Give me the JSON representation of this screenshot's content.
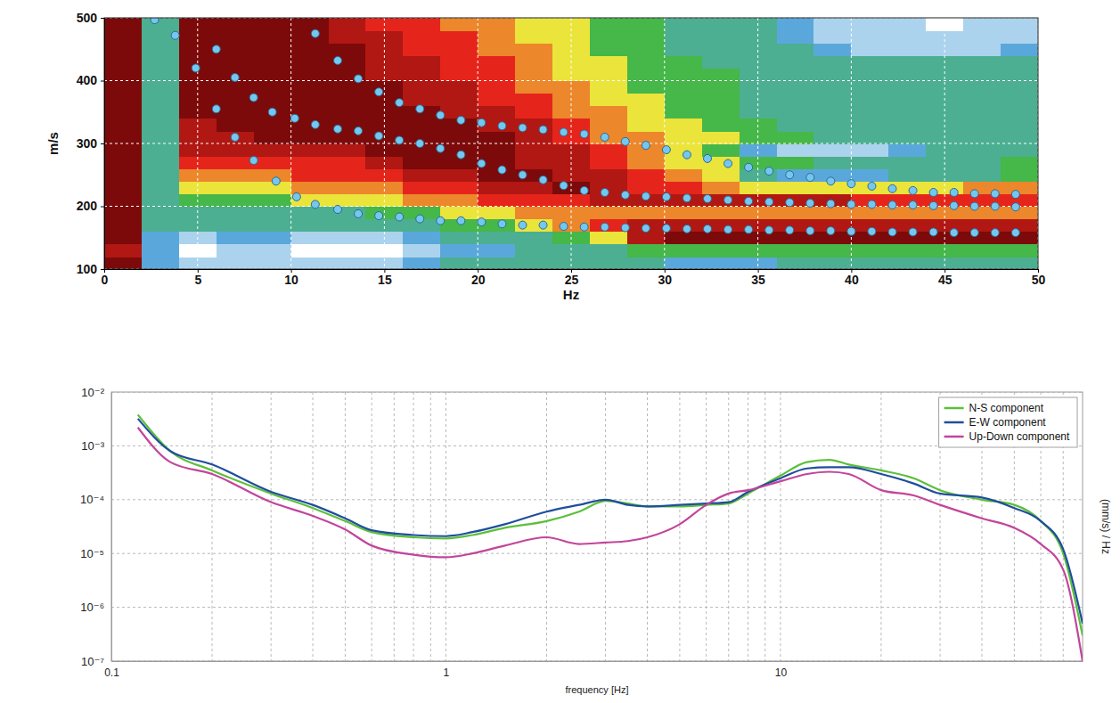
{
  "chart_data": [
    {
      "type": "heatmap",
      "xlabel": "Hz",
      "ylabel": "m/s",
      "xlim": [
        0,
        50
      ],
      "ylim": [
        100,
        500
      ],
      "xticks": [
        0,
        5,
        10,
        15,
        20,
        25,
        30,
        35,
        40,
        45,
        50
      ],
      "yticks": [
        100,
        200,
        300,
        400,
        500
      ],
      "grid": true,
      "x": [
        1,
        3,
        5,
        7,
        9,
        11,
        13,
        15,
        17,
        19,
        21,
        23,
        25,
        27,
        29,
        31,
        33,
        35,
        37,
        39,
        41,
        43,
        45,
        47,
        49
      ],
      "y": [
        110,
        130,
        150,
        170,
        190,
        210,
        230,
        250,
        270,
        290,
        310,
        330,
        350,
        370,
        390,
        410,
        430,
        450,
        470,
        490
      ],
      "zlim": [
        0,
        9
      ],
      "z": [
        [
          9,
          2,
          1,
          1,
          1,
          1,
          1,
          1,
          2,
          3,
          3,
          3,
          3,
          3,
          3,
          2,
          2,
          2,
          3,
          3,
          3,
          3,
          3,
          3,
          3
        ],
        [
          8,
          2,
          0,
          1,
          1,
          0,
          0,
          0,
          1,
          2,
          2,
          3,
          3,
          3,
          4,
          4,
          4,
          4,
          4,
          4,
          4,
          4,
          4,
          4,
          4
        ],
        [
          9,
          2,
          1,
          2,
          2,
          1,
          1,
          1,
          2,
          3,
          3,
          3,
          4,
          5,
          8,
          9,
          9,
          9,
          9,
          9,
          9,
          9,
          9,
          9,
          9
        ],
        [
          9,
          3,
          3,
          3,
          3,
          3,
          3,
          3,
          3,
          4,
          4,
          5,
          6,
          7,
          8,
          8,
          8,
          8,
          8,
          8,
          8,
          8,
          8,
          8,
          8
        ],
        [
          9,
          3,
          3,
          3,
          3,
          3,
          3,
          4,
          4,
          5,
          5,
          6,
          6,
          6,
          6,
          6,
          6,
          6,
          6,
          6,
          6,
          6,
          6,
          6,
          6
        ],
        [
          9,
          3,
          4,
          4,
          4,
          5,
          5,
          5,
          6,
          6,
          7,
          7,
          7,
          8,
          8,
          8,
          8,
          8,
          8,
          8,
          7,
          7,
          7,
          7,
          7
        ],
        [
          9,
          3,
          5,
          5,
          5,
          6,
          6,
          6,
          7,
          7,
          8,
          8,
          9,
          8,
          7,
          7,
          6,
          5,
          5,
          5,
          5,
          5,
          5,
          6,
          6
        ],
        [
          9,
          3,
          6,
          6,
          6,
          7,
          7,
          7,
          8,
          8,
          9,
          9,
          8,
          8,
          7,
          6,
          5,
          3,
          2,
          2,
          2,
          3,
          3,
          3,
          4
        ],
        [
          9,
          3,
          7,
          7,
          7,
          7,
          7,
          8,
          9,
          9,
          9,
          8,
          8,
          7,
          6,
          5,
          5,
          4,
          4,
          3,
          3,
          3,
          3,
          3,
          4
        ],
        [
          9,
          3,
          8,
          8,
          8,
          8,
          8,
          9,
          9,
          9,
          9,
          8,
          8,
          7,
          6,
          5,
          4,
          2,
          1,
          1,
          1,
          2,
          3,
          3,
          3
        ],
        [
          9,
          3,
          8,
          8,
          9,
          9,
          9,
          9,
          9,
          9,
          9,
          8,
          7,
          6,
          6,
          5,
          5,
          4,
          4,
          3,
          3,
          3,
          3,
          3,
          3
        ],
        [
          9,
          3,
          8,
          9,
          9,
          9,
          9,
          9,
          9,
          9,
          8,
          8,
          7,
          6,
          5,
          5,
          4,
          4,
          3,
          3,
          3,
          3,
          3,
          3,
          3
        ],
        [
          9,
          3,
          9,
          9,
          9,
          9,
          9,
          9,
          9,
          8,
          8,
          7,
          6,
          6,
          5,
          4,
          4,
          3,
          3,
          3,
          3,
          3,
          3,
          3,
          3
        ],
        [
          9,
          3,
          9,
          9,
          9,
          9,
          9,
          9,
          8,
          8,
          7,
          7,
          6,
          5,
          5,
          4,
          4,
          3,
          3,
          3,
          3,
          3,
          3,
          3,
          3
        ],
        [
          9,
          3,
          9,
          9,
          9,
          9,
          9,
          9,
          8,
          8,
          7,
          6,
          6,
          5,
          4,
          4,
          4,
          3,
          3,
          3,
          3,
          3,
          3,
          3,
          3
        ],
        [
          9,
          3,
          9,
          9,
          9,
          9,
          9,
          8,
          8,
          7,
          7,
          6,
          5,
          5,
          4,
          4,
          4,
          3,
          3,
          3,
          3,
          3,
          3,
          3,
          3
        ],
        [
          9,
          3,
          9,
          9,
          9,
          9,
          9,
          8,
          8,
          7,
          7,
          6,
          5,
          5,
          4,
          4,
          3,
          3,
          3,
          3,
          3,
          3,
          3,
          3,
          3
        ],
        [
          9,
          3,
          9,
          9,
          9,
          9,
          9,
          8,
          7,
          7,
          6,
          6,
          5,
          4,
          4,
          3,
          3,
          3,
          3,
          2,
          1,
          1,
          1,
          1,
          2
        ],
        [
          9,
          3,
          9,
          9,
          9,
          9,
          8,
          8,
          7,
          7,
          6,
          5,
          5,
          4,
          4,
          3,
          3,
          3,
          2,
          1,
          1,
          1,
          1,
          1,
          1
        ],
        [
          9,
          3,
          9,
          9,
          9,
          9,
          8,
          7,
          7,
          6,
          6,
          5,
          5,
          4,
          4,
          3,
          3,
          3,
          2,
          1,
          1,
          1,
          0,
          1,
          1
        ]
      ],
      "series": [
        {
          "type": "scatter",
          "marker": "circle",
          "color": "#74c7ef",
          "x": [
            2.7,
            3.8,
            4.9,
            6.0,
            7.0,
            8.0,
            9.0,
            10.2,
            11.3,
            12.5,
            13.6,
            14.7,
            15.8,
            16.9,
            18.0,
            19.1,
            20.2,
            21.3,
            22.4,
            23.5,
            24.6,
            25.7,
            26.8,
            27.9,
            29.0,
            30.1,
            31.2,
            32.3,
            33.4,
            34.5,
            35.6,
            36.7,
            37.8,
            38.9,
            40.0,
            41.1,
            42.2,
            43.3,
            44.4,
            45.5,
            46.6,
            47.7,
            48.8
          ],
          "values": [
            497,
            472,
            420,
            450,
            405,
            373,
            350,
            340,
            475,
            432,
            403,
            382,
            365,
            355,
            345,
            337,
            333,
            328,
            325,
            322,
            318,
            315,
            310,
            303,
            297,
            290,
            282,
            276,
            268,
            262,
            256,
            250,
            246,
            240,
            236,
            232,
            228,
            225,
            222,
            222,
            220,
            220,
            219
          ]
        },
        {
          "type": "scatter",
          "marker": "circle",
          "color": "#74c7ef",
          "x": [
            6.0,
            7.0,
            8.0,
            9.2,
            10.3,
            11.3,
            12.5,
            13.6,
            14.7,
            15.8,
            16.9,
            18.0,
            19.1,
            20.2,
            21.3,
            22.4,
            23.5,
            24.6,
            25.7,
            26.8,
            27.9,
            29.0,
            30.1,
            31.2,
            32.3,
            33.4,
            34.5,
            35.6,
            36.7,
            37.8,
            38.9,
            40.0,
            41.1,
            42.2,
            43.3,
            44.4,
            45.5,
            46.6,
            47.7,
            48.8
          ],
          "values": [
            355,
            310,
            273,
            240,
            215,
            330,
            323,
            320,
            312,
            305,
            300,
            292,
            282,
            268,
            258,
            250,
            242,
            233,
            225,
            222,
            218,
            216,
            215,
            213,
            212,
            210,
            208,
            207,
            206,
            205,
            204,
            203,
            203,
            202,
            202,
            201,
            201,
            200,
            200,
            199
          ]
        },
        {
          "type": "scatter",
          "marker": "circle",
          "color": "#74c7ef",
          "x": [
            11.3,
            12.5,
            13.6,
            14.7,
            15.8,
            16.9,
            18.0,
            19.1,
            20.2,
            21.3,
            22.4,
            23.5,
            24.6,
            25.7,
            26.8,
            27.9,
            29.0,
            30.1,
            31.2,
            32.3,
            33.4,
            34.5,
            35.6,
            36.7,
            37.8,
            38.9,
            40.0,
            41.1,
            42.2,
            43.3,
            44.4,
            45.5,
            46.6,
            47.7,
            48.8
          ],
          "values": [
            203,
            195,
            188,
            185,
            183,
            180,
            177,
            177,
            175,
            172,
            170,
            170,
            168,
            167,
            167,
            166,
            165,
            165,
            164,
            164,
            163,
            163,
            162,
            162,
            161,
            161,
            160,
            160,
            159,
            159,
            159,
            158,
            158,
            158,
            158
          ]
        }
      ]
    },
    {
      "type": "line",
      "xlabel": "frequency [Hz]",
      "ylabel": "(mm/s) / Hz",
      "log": true,
      "grid": true,
      "legend": "upper right",
      "xlim": [
        0.1,
        80
      ],
      "ylim": [
        1e-07,
        0.01
      ],
      "xticks": [
        0.1,
        1,
        10
      ],
      "xticks_minor": [
        0.2,
        0.3,
        0.4,
        0.5,
        0.6,
        0.7,
        0.8,
        0.9,
        2,
        3,
        4,
        5,
        6,
        7,
        8,
        9,
        20,
        30,
        40,
        50,
        60,
        70
      ],
      "yticks": [
        {
          "value": 1e-07,
          "label": "10⁻⁷"
        },
        {
          "value": 1e-06,
          "label": "10⁻⁶"
        },
        {
          "value": 1e-05,
          "label": "10⁻⁵"
        },
        {
          "value": 0.0001,
          "label": "10⁻⁴"
        },
        {
          "value": 0.001,
          "label": "10⁻³"
        },
        {
          "value": 0.01,
          "label": "10⁻²"
        }
      ],
      "x": [
        0.12,
        0.15,
        0.2,
        0.3,
        0.4,
        0.5,
        0.6,
        0.8,
        1,
        1.2,
        1.5,
        2,
        2.5,
        3,
        3.5,
        4,
        5,
        6,
        7,
        8,
        10,
        12,
        14,
        16,
        20,
        25,
        30,
        40,
        50,
        60,
        70,
        80
      ],
      "series": [
        {
          "name": "N-S component",
          "color": "#5cbf3a",
          "values": [
            0.0038,
            0.0008,
            0.00035,
            0.00013,
            7e-05,
            4e-05,
            2.5e-05,
            2e-05,
            1.9e-05,
            2.2e-05,
            3e-05,
            4e-05,
            6e-05,
            9.5e-05,
            8.5e-05,
            7.5e-05,
            7.5e-05,
            8e-05,
            8.5e-05,
            0.00013,
            0.00028,
            0.0005,
            0.00055,
            0.00045,
            0.00035,
            0.00025,
            0.00015,
            0.0001,
            8e-05,
            4e-05,
            1e-05,
            3e-07
          ]
        },
        {
          "name": "E-W component",
          "color": "#1f4e9c",
          "values": [
            0.0032,
            0.0008,
            0.00045,
            0.00014,
            8e-05,
            4.5e-05,
            2.7e-05,
            2.2e-05,
            2.1e-05,
            2.5e-05,
            3.5e-05,
            6e-05,
            8e-05,
            0.0001,
            8e-05,
            7.5e-05,
            8e-05,
            8.5e-05,
            9e-05,
            0.00014,
            0.00025,
            0.00038,
            0.0004,
            0.0004,
            0.0003,
            0.0002,
            0.00013,
            0.00011,
            7e-05,
            4e-05,
            1.2e-05,
            5e-07
          ]
        },
        {
          "name": "Up-Down component",
          "color": "#c2459b",
          "values": [
            0.0022,
            0.0005,
            0.0003,
            9e-05,
            5e-05,
            2.8e-05,
            1.4e-05,
            9.5e-06,
            8.5e-06,
            1e-05,
            1.4e-05,
            2e-05,
            1.5e-05,
            1.6e-05,
            1.7e-05,
            2e-05,
            3.5e-05,
            8e-05,
            0.00013,
            0.00015,
            0.00022,
            0.0003,
            0.00033,
            0.0003,
            0.00015,
            0.00012,
            8e-05,
            4.5e-05,
            3e-05,
            1.5e-05,
            5e-06,
            1e-07
          ]
        }
      ]
    }
  ]
}
